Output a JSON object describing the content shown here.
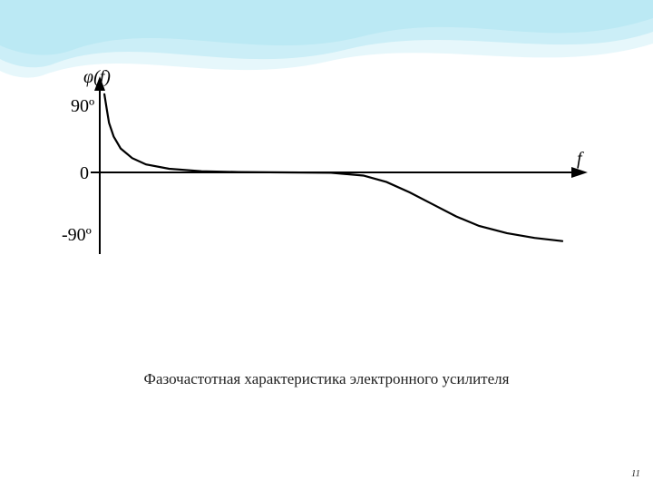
{
  "background": {
    "wave_colors": [
      "#5ec8e6",
      "#9fe0f0",
      "#d6f2f9",
      "#ffffff"
    ],
    "wave_opacity": 0.85
  },
  "chart": {
    "type": "line",
    "y_axis_label": "φ(f)",
    "x_axis_label": "f",
    "origin_label": "0",
    "y_ticks": [
      "90º",
      "-90º"
    ],
    "line_color": "#000000",
    "axis_color": "#000000",
    "line_width": 2.2,
    "axis_width": 2,
    "curve_points": [
      [
        0.01,
        0.98
      ],
      [
        0.015,
        0.8
      ],
      [
        0.02,
        0.62
      ],
      [
        0.03,
        0.45
      ],
      [
        0.045,
        0.3
      ],
      [
        0.07,
        0.18
      ],
      [
        0.1,
        0.1
      ],
      [
        0.15,
        0.045
      ],
      [
        0.22,
        0.015
      ],
      [
        0.3,
        0.004
      ],
      [
        0.4,
        0.0
      ],
      [
        0.5,
        -0.004
      ],
      [
        0.57,
        -0.04
      ],
      [
        0.62,
        -0.12
      ],
      [
        0.67,
        -0.25
      ],
      [
        0.72,
        -0.4
      ],
      [
        0.77,
        -0.55
      ],
      [
        0.82,
        -0.67
      ],
      [
        0.88,
        -0.76
      ],
      [
        0.94,
        -0.82
      ],
      [
        1.0,
        -0.86
      ]
    ],
    "x_range": [
      0,
      1
    ],
    "y_range": [
      -1,
      1
    ]
  },
  "caption": "Фазочастотная характеристика электронного усилителя",
  "page_number": "11"
}
